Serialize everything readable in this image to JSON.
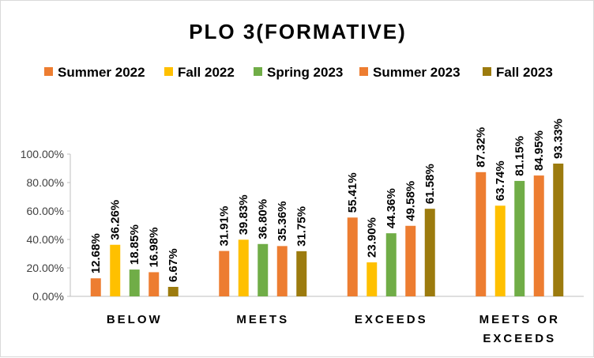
{
  "chart_data": {
    "type": "bar",
    "title": "PLO 3(FORMATIVE)",
    "categories": [
      [
        "BELOW"
      ],
      [
        "MEETS"
      ],
      [
        "EXCEEDS"
      ],
      [
        "MEETS OR",
        "EXCEEDS"
      ]
    ],
    "series": [
      {
        "name": "Summer 2022",
        "color": "#ED7D31",
        "values": [
          12.68,
          31.91,
          55.41,
          87.32
        ]
      },
      {
        "name": "Fall 2022",
        "color": "#FFC000",
        "values": [
          36.26,
          39.83,
          23.9,
          63.74
        ]
      },
      {
        "name": "Spring 2023",
        "color": "#70AD47",
        "values": [
          18.85,
          36.8,
          44.36,
          81.15
        ]
      },
      {
        "name": "Summer 2023",
        "color": "#ED7D31",
        "values": [
          16.98,
          35.36,
          49.58,
          84.95
        ]
      },
      {
        "name": "Fall 2023",
        "color": "#9C7B0E",
        "values": [
          6.67,
          31.75,
          61.58,
          93.33
        ]
      }
    ],
    "yticks": [
      "0.00%",
      "20.00%",
      "40.00%",
      "60.00%",
      "80.00%",
      "100.00%"
    ],
    "ylim": [
      0,
      100
    ],
    "grid": false,
    "legend_position": "top",
    "value_format": "percent-2dp"
  }
}
